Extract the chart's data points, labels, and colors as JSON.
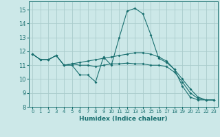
{
  "xlabel": "Humidex (Indice chaleur)",
  "background_color": "#cce8e8",
  "grid_color": "#aacccc",
  "line_color": "#1a7070",
  "xlim": [
    -0.5,
    23.5
  ],
  "ylim": [
    8,
    15.6
  ],
  "yticks": [
    8,
    9,
    10,
    11,
    12,
    13,
    14,
    15
  ],
  "xticks": [
    0,
    1,
    2,
    3,
    4,
    5,
    6,
    7,
    8,
    9,
    10,
    11,
    12,
    13,
    14,
    15,
    16,
    17,
    18,
    19,
    20,
    21,
    22,
    23
  ],
  "series": [
    [
      11.8,
      11.4,
      11.4,
      11.7,
      11.0,
      11.0,
      10.3,
      10.3,
      9.8,
      11.6,
      11.0,
      13.0,
      14.9,
      15.1,
      14.7,
      13.2,
      11.5,
      11.2,
      10.7,
      9.5,
      8.7,
      8.5,
      8.5,
      8.5
    ],
    [
      11.8,
      11.4,
      11.4,
      11.7,
      11.0,
      11.1,
      11.0,
      11.0,
      10.9,
      11.0,
      11.1,
      11.1,
      11.15,
      11.1,
      11.1,
      11.0,
      11.0,
      10.9,
      10.5,
      9.8,
      9.0,
      8.6,
      8.5,
      8.5
    ],
    [
      11.8,
      11.4,
      11.4,
      11.7,
      11.0,
      11.1,
      11.2,
      11.3,
      11.4,
      11.5,
      11.6,
      11.7,
      11.8,
      11.9,
      11.9,
      11.8,
      11.6,
      11.3,
      10.7,
      10.0,
      9.3,
      8.7,
      8.5,
      8.5
    ]
  ]
}
